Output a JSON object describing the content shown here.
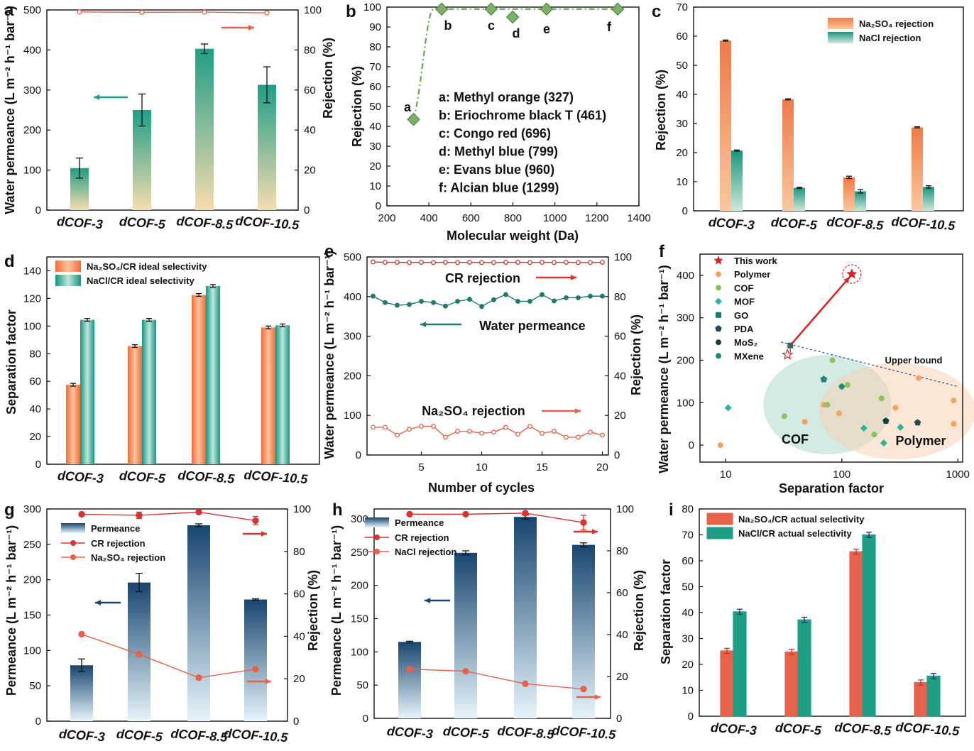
{
  "panels": [
    {
      "id": "a",
      "label": "a",
      "ylabel": "Water permeance (L m⁻² h⁻¹ bar⁻¹)",
      "y2label": "Rejection (%)",
      "chart_data": {
        "type": "bar",
        "categories": [
          "dCOF-3",
          "dCOF-5",
          "dCOF-8.5",
          "dCOF-10.5"
        ],
        "series": [
          {
            "values": [
              105,
              250,
              403,
              313
            ],
            "errors": [
              25,
              40,
              12,
              45
            ],
            "axis": "left",
            "color": "#1f9e86"
          },
          {
            "type": "line",
            "values": [
              99,
              98.8,
              98.9,
              98.5
            ],
            "axis": "right",
            "color": "#e8614a"
          }
        ],
        "ylim": [
          0,
          500
        ],
        "yticks": [
          0,
          100,
          200,
          300,
          400,
          500
        ],
        "y2lim": [
          0,
          100
        ],
        "y2ticks": [
          0,
          20,
          40,
          60,
          80,
          100
        ]
      }
    },
    {
      "id": "b",
      "label": "b",
      "xlabel": "Molecular weight (Da)",
      "ylabel": "Rejection (%)",
      "legend": [
        "a: Methyl orange (327)",
        "b: Eriochrome black T (461)",
        "c: Congo red (696)",
        "d: Methyl blue (799)",
        "e: Evans blue (960)",
        "f: Alcian blue (1299)"
      ],
      "chart_data": {
        "type": "scatter",
        "x": [
          327,
          461,
          696,
          799,
          960,
          1299
        ],
        "y": [
          43.5,
          99,
          99,
          95,
          99,
          99
        ],
        "point_labels": [
          "a",
          "b",
          "c",
          "d",
          "e",
          "f"
        ],
        "xlim": [
          200,
          1400
        ],
        "xticks": [
          200,
          400,
          600,
          800,
          1000,
          1200,
          1400
        ],
        "ylim": [
          0,
          100
        ],
        "yticks": [
          0,
          10,
          20,
          30,
          40,
          50,
          60,
          70,
          80,
          90,
          100
        ]
      }
    },
    {
      "id": "c",
      "label": "c",
      "ylabel": "Rejection (%)",
      "chart_data": {
        "type": "bar",
        "categories": [
          "dCOF-3",
          "dCOF-5",
          "dCOF-8.5",
          "dCOF-10.5"
        ],
        "series": [
          {
            "name": "Na₂SO₄ rejection",
            "values": [
              58.5,
              38.3,
              11.5,
              28.7
            ],
            "errors": [
              0.2,
              0.2,
              0.4,
              0.2
            ],
            "color": "#f07a45"
          },
          {
            "name": "NaCl rejection",
            "values": [
              20.7,
              7.9,
              6.7,
              8.2
            ],
            "errors": [
              0.2,
              0.2,
              0.6,
              0.4
            ],
            "color": "#1f9e86"
          }
        ],
        "ylim": [
          0,
          70
        ],
        "yticks": [
          0,
          10,
          20,
          30,
          40,
          50,
          60,
          70
        ]
      }
    },
    {
      "id": "d",
      "label": "d",
      "ylabel": "Separation factor",
      "chart_data": {
        "type": "bar",
        "categories": [
          "dCOF-3",
          "dCOF-5",
          "dCOF-8.5",
          "dCOF-10.5"
        ],
        "series": [
          {
            "name": "Na₂SO₄/CR ideal selectivity",
            "values": [
              57.5,
              85.5,
              122.5,
              99
            ],
            "errors": [
              1,
              1,
              1,
              1
            ],
            "color": "#f07a45"
          },
          {
            "name": "NaCl/CR ideal selectivity",
            "values": [
              104.5,
              104.5,
              129,
              100.5
            ],
            "errors": [
              1,
              1,
              1,
              1
            ],
            "color": "#1f9e86"
          }
        ],
        "ylim": [
          0,
          150
        ],
        "yticks": [
          0,
          20,
          40,
          60,
          80,
          100,
          120,
          140
        ]
      }
    },
    {
      "id": "e",
      "label": "e",
      "xlabel": "Number of cycles",
      "ylabel": "Water permeance (L m⁻² h⁻¹ bar⁻¹)",
      "y2label": "Rejection (%)",
      "annotations": {
        "cr": "CR rejection",
        "water": "Water permeance",
        "na": "Na₂SO₄ rejection"
      },
      "chart_data": {
        "type": "line",
        "x": [
          1,
          2,
          3,
          4,
          5,
          6,
          7,
          8,
          9,
          10,
          11,
          12,
          13,
          14,
          15,
          16,
          17,
          18,
          19,
          20
        ],
        "series": [
          {
            "name": "CR rejection",
            "axis": "right",
            "color": "#d8332e",
            "values": [
              97.5,
              97.3,
              97.3,
              97.2,
              97.3,
              97.2,
              97.3,
              97.2,
              97.3,
              97.2,
              97.2,
              97.3,
              97.3,
              97.2,
              97.3,
              97.2,
              97.3,
              97.2,
              97.2,
              97.3
            ]
          },
          {
            "name": "Water permeance",
            "axis": "left",
            "color": "#1d7a6c",
            "values": [
              401,
              385,
              378,
              380,
              388,
              385,
              376,
              388,
              393,
              375,
              392,
              405,
              388,
              388,
              405,
              389,
              397,
              397,
              401,
              401
            ]
          },
          {
            "name": "Na₂SO₄ rejection",
            "axis": "right",
            "color": "#e8614a",
            "values": [
              14,
              14,
              10,
              13,
              14.5,
              14.5,
              9,
              12,
              12,
              11,
              11.5,
              14,
              10.5,
              14.5,
              11,
              12,
              9,
              9,
              11.5,
              10
            ]
          }
        ],
        "xlim": [
          0.5,
          20.5
        ],
        "xticks": [
          5,
          10,
          15,
          20
        ],
        "ylim": [
          0,
          500
        ],
        "yticks": [
          0,
          100,
          200,
          300,
          400,
          500
        ],
        "y2lim": [
          0,
          100
        ],
        "y2ticks": [
          0,
          20,
          40,
          60,
          80,
          100
        ]
      }
    },
    {
      "id": "f",
      "label": "f",
      "xlabel": "Separation factor",
      "ylabel": "Water permeance (L m⁻² h⁻¹ bar⁻¹)",
      "region_labels": {
        "cof": "COF",
        "polymer": "Polymer",
        "upper": "Upper bound"
      },
      "chart_data": {
        "type": "scatter",
        "xscale": "log",
        "xlim": [
          6,
          1100
        ],
        "xticks": [
          10,
          100,
          1000
        ],
        "ylim": [
          -40,
          450
        ],
        "yticks": [
          0,
          100,
          200,
          300,
          400
        ],
        "series": [
          {
            "name": "This work",
            "color": "#e02020",
            "marker": "star",
            "points": [
              [
                122,
                403
              ]
            ]
          },
          {
            "name": "Polymer",
            "color": "#f4a259",
            "marker": "circle",
            "points": [
              [
                9,
                0
              ],
              [
                48,
                55
              ],
              [
                70,
                95
              ],
              [
                95,
                75
              ],
              [
                290,
                88
              ],
              [
                460,
                158
              ],
              [
                920,
                105
              ],
              [
                920,
                50
              ]
            ]
          },
          {
            "name": "COF",
            "color": "#8bc25a",
            "marker": "circle",
            "points": [
              [
                32,
                68
              ],
              [
                75,
                95
              ],
              [
                83,
                200
              ],
              [
                112,
                142
              ],
              [
                190,
                25
              ],
              [
                220,
                110
              ]
            ]
          },
          {
            "name": "MOF",
            "color": "#2ab39a",
            "marker": "diamond",
            "points": [
              [
                10.5,
                88
              ],
              [
                100,
                138
              ],
              [
                155,
                40
              ],
              [
                230,
                5
              ],
              [
                320,
                42
              ]
            ]
          },
          {
            "name": "GO",
            "color": "#137d6b",
            "marker": "square",
            "points": [
              [
                36,
                235
              ]
            ]
          },
          {
            "name": "PDA",
            "color": "#1d4a55",
            "marker": "pentagon",
            "points": [
              [
                70,
                155
              ],
              [
                240,
                57
              ],
              [
                450,
                53
              ]
            ]
          },
          {
            "name": "MoS₂",
            "color": "#14403a",
            "marker": "circle",
            "points": [
              [
                240,
                57
              ]
            ]
          },
          {
            "name": "MXene",
            "color": "#1f8a77",
            "marker": "circle",
            "points": [
              [
                70,
                155
              ],
              [
                100,
                138
              ]
            ]
          }
        ]
      }
    },
    {
      "id": "g",
      "label": "g",
      "ylabel": "Permeance (L m⁻² h⁻¹ bar⁻¹)",
      "y2label": "Rejection (%)",
      "legend": [
        "Permeance",
        "CR rejection",
        "Na₂SO₄ rejection"
      ],
      "chart_data": {
        "type": "bar",
        "categories": [
          "dCOF-3",
          "dCOF-5",
          "dCOF-8.5",
          "dCOF-10.5"
        ],
        "series": [
          {
            "name": "Permeance",
            "values": [
              79,
              196,
              277,
              172
            ],
            "errors": [
              9,
              13,
              2,
              1
            ],
            "axis": "left",
            "color": "#1b4a75"
          },
          {
            "name": "CR rejection",
            "type": "line",
            "axis": "right",
            "values": [
              97.5,
              97,
              98.5,
              94.5
            ],
            "errors": [
              0.5,
              1.5,
              0.5,
              2
            ],
            "color": "#d8332e"
          },
          {
            "name": "Na₂SO₄ rejection",
            "type": "line",
            "axis": "right",
            "values": [
              41,
              31.5,
              20.5,
              24.5
            ],
            "color": "#e8614a"
          }
        ],
        "ylim": [
          0,
          300
        ],
        "yticks": [
          0,
          50,
          100,
          150,
          200,
          250,
          300
        ],
        "y2lim": [
          0,
          100
        ],
        "y2ticks": [
          0,
          20,
          40,
          60,
          80,
          100
        ]
      }
    },
    {
      "id": "h",
      "label": "h",
      "ylabel": "Permeance (L m⁻² h⁻¹ bar⁻¹)",
      "y2label": "Rejection (%)",
      "legend": [
        "Permeance",
        "CR rejection",
        "NaCl rejection"
      ],
      "chart_data": {
        "type": "bar",
        "categories": [
          "dCOF-3",
          "dCOF-5",
          "dCOF-8.5",
          "dCOF-10.5"
        ],
        "series": [
          {
            "name": "Permeance",
            "values": [
              115,
              249,
              303,
              261
            ],
            "errors": [
              1,
              3,
              3,
              3
            ],
            "axis": "left",
            "color": "#1b4a75"
          },
          {
            "name": "CR rejection",
            "type": "line",
            "axis": "right",
            "values": [
              97.5,
              97.5,
              98,
              93.5
            ],
            "errors": [
              0.3,
              0.3,
              0.3,
              3.5
            ],
            "color": "#d8332e"
          },
          {
            "name": "NaCl rejection",
            "type": "line",
            "axis": "right",
            "values": [
              23.5,
              22.5,
              16.5,
              14
            ],
            "color": "#e8614a"
          }
        ],
        "ylim": [
          0,
          315
        ],
        "yticks": [
          0,
          50,
          100,
          150,
          200,
          250,
          300
        ],
        "y2lim": [
          0,
          100
        ],
        "y2ticks": [
          0,
          20,
          40,
          60,
          80,
          100
        ]
      }
    },
    {
      "id": "i",
      "label": "i",
      "ylabel": "Separation factor",
      "chart_data": {
        "type": "bar",
        "categories": [
          "dCOF-3",
          "dCOF-5",
          "dCOF-8.5",
          "dCOF-10.5"
        ],
        "series": [
          {
            "name": "Na₂SO₄/CR actual selectivity",
            "values": [
              25.2,
              24.8,
              63.5,
              13
            ],
            "errors": [
              1,
              1,
              1,
              1
            ],
            "color": "#e8614a"
          },
          {
            "name": "NaCl/CR actual selectivity",
            "values": [
              40.3,
              37.2,
              70,
              15.5
            ],
            "errors": [
              1,
              1,
              1,
              1
            ],
            "color": "#1f9e86"
          }
        ],
        "ylim": [
          0,
          80
        ],
        "yticks": [
          0,
          10,
          20,
          30,
          40,
          50,
          60,
          70,
          80
        ]
      }
    }
  ]
}
